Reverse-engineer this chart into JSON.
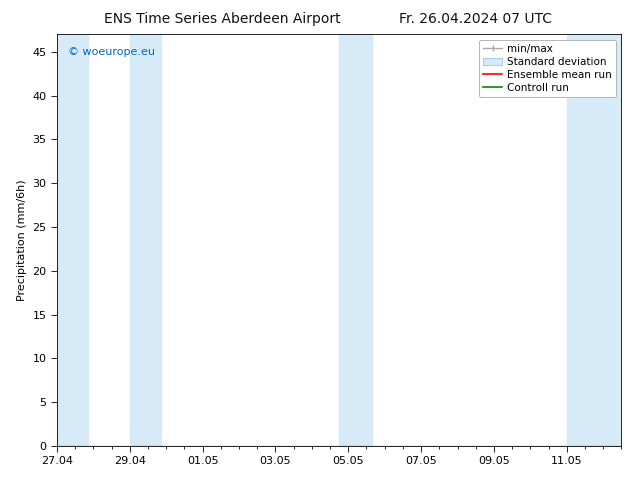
{
  "title_left": "ENS Time Series Aberdeen Airport",
  "title_right": "Fr. 26.04.2024 07 UTC",
  "ylabel": "Precipitation (mm/6h)",
  "watermark": "© woeurope.eu",
  "watermark_color": "#0066cc",
  "ylim": [
    0,
    47
  ],
  "yticks": [
    0,
    5,
    10,
    15,
    20,
    25,
    30,
    35,
    40,
    45
  ],
  "xlim": [
    0,
    15.5
  ],
  "xtick_labels": [
    "27.04",
    "29.04",
    "01.05",
    "03.05",
    "05.05",
    "07.05",
    "09.05",
    "11.05"
  ],
  "xtick_positions_days": [
    0,
    2,
    4,
    6,
    8,
    10,
    12,
    14
  ],
  "shaded_regions": [
    [
      0.0,
      0.85
    ],
    [
      2.0,
      2.85
    ],
    [
      7.75,
      8.65
    ],
    [
      14.0,
      15.5
    ]
  ],
  "shade_color": "#d6eaf8",
  "bg_color": "#ffffff",
  "legend_entries": [
    "min/max",
    "Standard deviation",
    "Ensemble mean run",
    "Controll run"
  ],
  "legend_line_colors": [
    "#aaaaaa",
    "#aaccee",
    "#ff0000",
    "#008800"
  ],
  "title_fontsize": 10,
  "tick_fontsize": 8,
  "label_fontsize": 8,
  "legend_fontsize": 7.5
}
